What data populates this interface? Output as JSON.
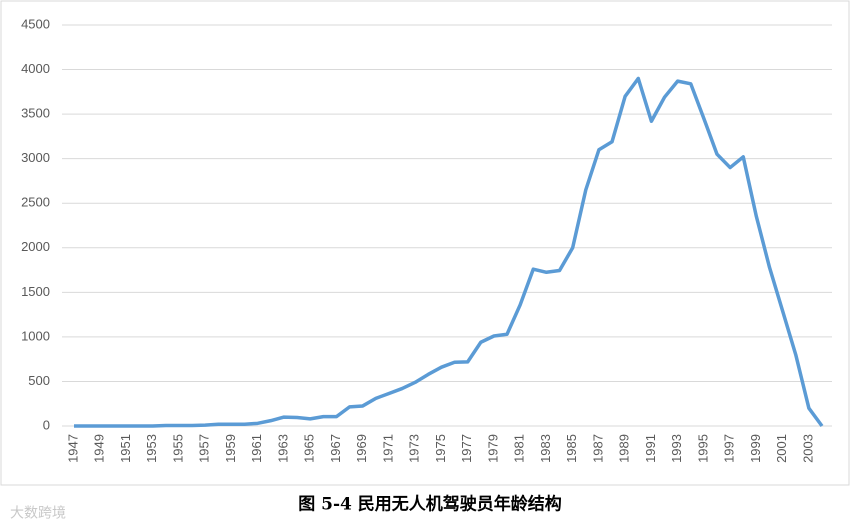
{
  "chart_data": {
    "type": "line",
    "caption": "图 5-4 民用无人机驾驶员年龄结构",
    "watermark": "大数跨境",
    "categories": [
      "1947",
      null,
      "1949",
      null,
      "1951",
      null,
      "1953",
      null,
      "1955",
      null,
      "1957",
      null,
      "1959",
      null,
      "1961",
      null,
      "1963",
      null,
      "1965",
      null,
      "1967",
      null,
      "1969",
      null,
      "1971",
      null,
      "1973",
      null,
      "1975",
      null,
      "1977",
      null,
      "1979",
      null,
      "1981",
      null,
      "1983",
      null,
      "1985",
      null,
      "1987",
      null,
      "1989",
      null,
      "1991",
      null,
      "1993",
      null,
      "1995",
      null,
      "1997",
      null,
      "1999",
      null,
      "2001",
      null,
      "2003",
      null
    ],
    "values": [
      0,
      0,
      0,
      0,
      0,
      0,
      0,
      5,
      5,
      5,
      10,
      20,
      20,
      20,
      30,
      60,
      100,
      95,
      80,
      105,
      105,
      215,
      225,
      310,
      365,
      420,
      490,
      580,
      660,
      715,
      720,
      940,
      1010,
      1030,
      1360,
      1760,
      1725,
      1745,
      2000,
      2650,
      3100,
      3190,
      3700,
      3900,
      3420,
      3690,
      3870,
      3840,
      3450,
      3050,
      2900,
      3020,
      2350,
      1780,
      1290,
      800,
      200,
      0
    ],
    "color": "#5b9bd5",
    "ylim": [
      0,
      4500
    ],
    "yticks": [
      0,
      500,
      1000,
      1500,
      2000,
      2500,
      3000,
      3500,
      4000,
      4500
    ],
    "grid": true
  }
}
